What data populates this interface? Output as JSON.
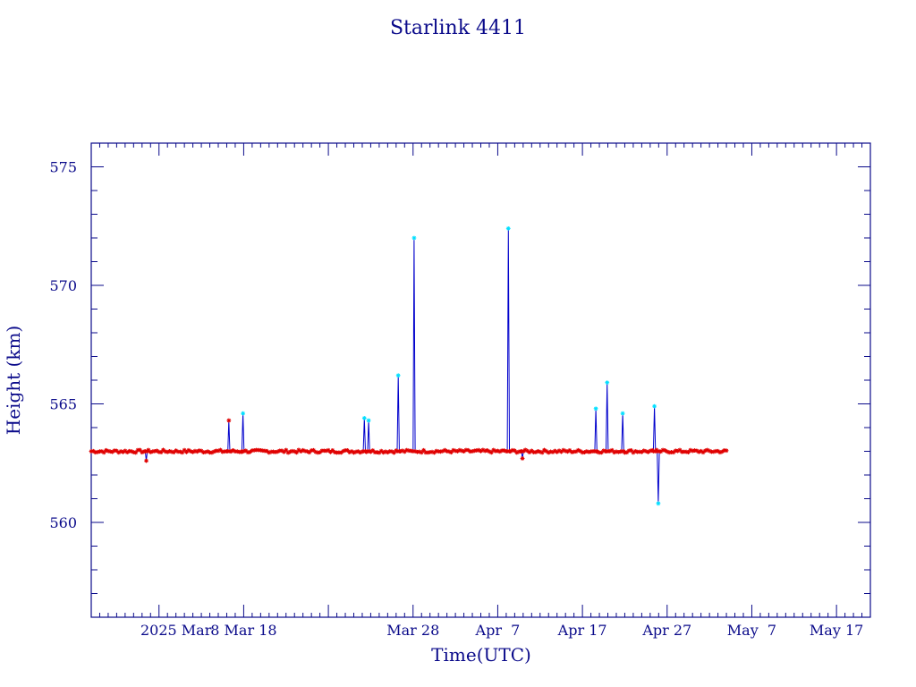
{
  "chart_data": {
    "type": "line",
    "title": "Starlink 4411",
    "xlabel": "Time(UTC)",
    "ylabel": "Height (km)",
    "colors": {
      "axis": "#0a0a8a",
      "line": "#0000cc",
      "marker_primary": "#e00000",
      "marker_secondary": "#00e0ff"
    },
    "x_axis": {
      "unit": "day",
      "range": [
        "2025-02-18",
        "2025-05-21"
      ],
      "tick_labels": [
        {
          "date": "2025-02-28",
          "label": "2025 Mar"
        },
        {
          "date": "2025-03-08",
          "label": "8 Mar 18"
        },
        {
          "date": "2025-03-28",
          "label": "Mar 28"
        },
        {
          "date": "2025-04-07",
          "label": "Apr  7"
        },
        {
          "date": "2025-04-17",
          "label": "Apr 17"
        },
        {
          "date": "2025-04-27",
          "label": "Apr 27"
        },
        {
          "date": "2025-05-07",
          "label": "May  7"
        },
        {
          "date": "2025-05-17",
          "label": "May 17"
        }
      ],
      "major_ticks": [
        "2025-02-26",
        "2025-03-08",
        "2025-03-18",
        "2025-03-28",
        "2025-04-07",
        "2025-04-17",
        "2025-04-27",
        "2025-05-07",
        "2025-05-17"
      ]
    },
    "y_axis": {
      "range": [
        556,
        576
      ],
      "ticks": [
        560,
        565,
        570,
        575
      ],
      "minor_step": 1
    },
    "grid": false,
    "series": [
      {
        "baseline": 563.0,
        "start": "2025-02-18",
        "end": "2025-05-04",
        "events": [
          {
            "date": "2025-02-24T12:00",
            "value": 562.6,
            "marker": "primary"
          },
          {
            "date": "2025-03-06T06:00",
            "value": 564.3,
            "marker": "primary"
          },
          {
            "date": "2025-03-07T22:00",
            "value": 564.6,
            "marker": "secondary"
          },
          {
            "date": "2025-03-22T06:00",
            "value": 564.4,
            "marker": "secondary"
          },
          {
            "date": "2025-03-22T18:00",
            "value": 564.3,
            "marker": "secondary"
          },
          {
            "date": "2025-03-26T06:00",
            "value": 566.2,
            "marker": "secondary"
          },
          {
            "date": "2025-03-28T03:00",
            "value": 572.0,
            "marker": "secondary"
          },
          {
            "date": "2025-04-08T06:00",
            "value": 572.4,
            "marker": "secondary"
          },
          {
            "date": "2025-04-09T22:00",
            "value": 562.7,
            "marker": "primary"
          },
          {
            "date": "2025-04-18T14:00",
            "value": 564.8,
            "marker": "secondary"
          },
          {
            "date": "2025-04-19T22:00",
            "value": 565.9,
            "marker": "secondary"
          },
          {
            "date": "2025-04-21T18:00",
            "value": 564.6,
            "marker": "secondary"
          },
          {
            "date": "2025-04-25T12:00",
            "value": 564.9,
            "marker": "secondary"
          },
          {
            "date": "2025-04-25T23:00",
            "value": 560.8,
            "marker": "secondary"
          }
        ]
      }
    ]
  }
}
